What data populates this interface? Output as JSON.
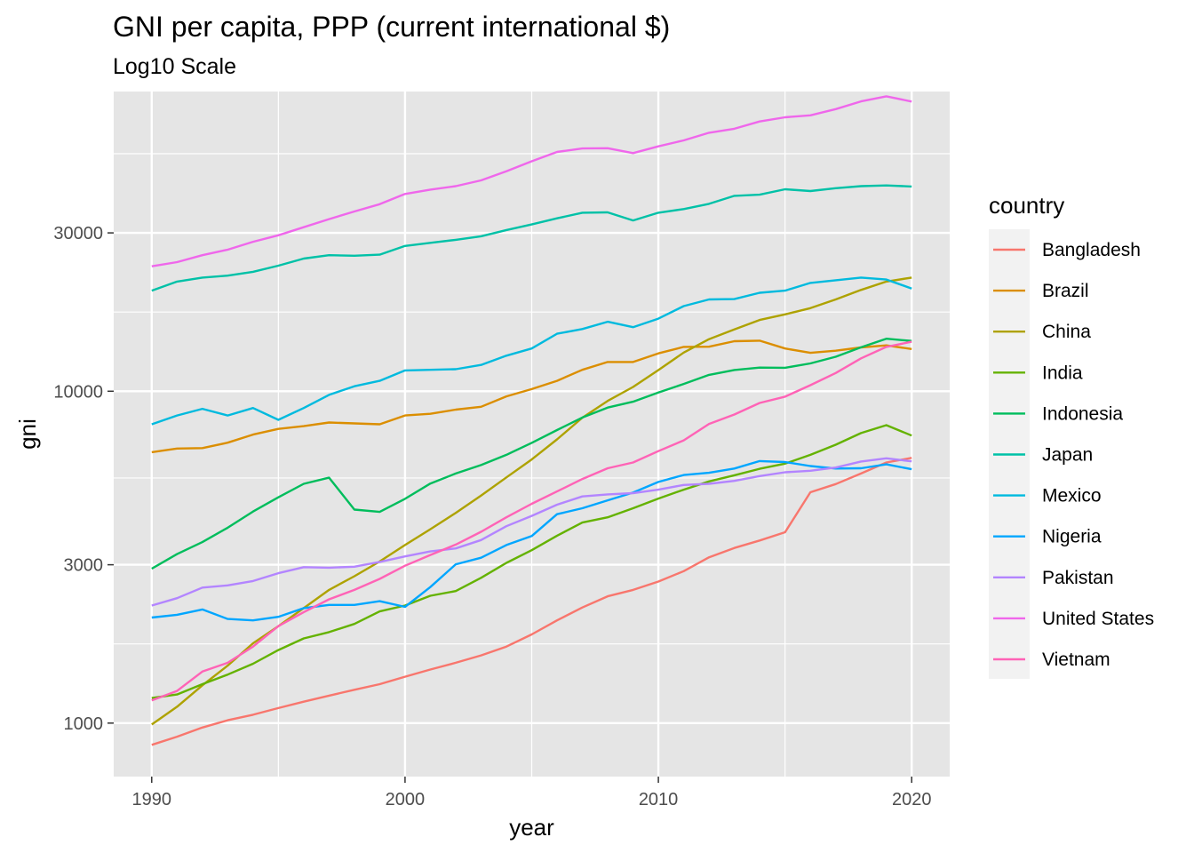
{
  "chart_data": {
    "type": "line",
    "title": "GNI per capita, PPP (current international $)",
    "subtitle": "Log10 Scale",
    "xlabel": "year",
    "ylabel": "gni",
    "y_scale": "log10",
    "xlim": [
      1988.5,
      2021.5
    ],
    "ylim": [
      690,
      80000
    ],
    "x_ticks": [
      1990,
      2000,
      2010,
      2020
    ],
    "y_ticks": [
      1000,
      3000,
      10000,
      30000
    ],
    "grid": true,
    "panel_background": "#e5e5e5",
    "legend_title": "country",
    "legend_position": "right",
    "x": [
      1990,
      1991,
      1992,
      1993,
      1994,
      1995,
      1996,
      1997,
      1998,
      1999,
      2000,
      2001,
      2002,
      2003,
      2004,
      2005,
      2006,
      2007,
      2008,
      2009,
      2010,
      2011,
      2012,
      2013,
      2014,
      2015,
      2016,
      2017,
      2018,
      2019,
      2020
    ],
    "series": [
      {
        "name": "Bangladesh",
        "color": "#F8766D",
        "values": [
          860,
          910,
          970,
          1020,
          1060,
          1110,
          1160,
          1210,
          1260,
          1310,
          1380,
          1450,
          1520,
          1600,
          1700,
          1850,
          2040,
          2230,
          2410,
          2520,
          2670,
          2870,
          3160,
          3370,
          3550,
          3760,
          4960,
          5250,
          5650,
          6100,
          6300
        ]
      },
      {
        "name": "Brazil",
        "color": "#DB8E00",
        "values": [
          6550,
          6720,
          6740,
          7000,
          7400,
          7700,
          7850,
          8050,
          8000,
          7950,
          8450,
          8550,
          8800,
          8980,
          9650,
          10150,
          10750,
          11600,
          12250,
          12250,
          13000,
          13600,
          13620,
          14150,
          14200,
          13450,
          13050,
          13250,
          13550,
          13750,
          13400
        ]
      },
      {
        "name": "China",
        "color": "#AEA200",
        "values": [
          990,
          1120,
          1300,
          1490,
          1740,
          1960,
          2220,
          2520,
          2770,
          3070,
          3440,
          3840,
          4300,
          4850,
          5500,
          6230,
          7160,
          8320,
          9350,
          10300,
          11580,
          13080,
          14350,
          15350,
          16400,
          17050,
          17800,
          18900,
          20200,
          21400,
          22000
        ]
      },
      {
        "name": "India",
        "color": "#64B200",
        "values": [
          1190,
          1220,
          1310,
          1400,
          1510,
          1660,
          1800,
          1880,
          1990,
          2170,
          2260,
          2420,
          2500,
          2740,
          3040,
          3320,
          3670,
          4020,
          4170,
          4440,
          4750,
          5050,
          5350,
          5580,
          5840,
          6050,
          6430,
          6900,
          7480,
          7900,
          7350
        ]
      },
      {
        "name": "Indonesia",
        "color": "#00BD5C",
        "values": [
          2920,
          3230,
          3510,
          3880,
          4340,
          4790,
          5260,
          5490,
          4400,
          4330,
          4740,
          5270,
          5650,
          5990,
          6430,
          6990,
          7640,
          8330,
          8930,
          9300,
          9910,
          10520,
          11200,
          11590,
          11780,
          11770,
          12130,
          12700,
          13560,
          14400,
          14180
        ]
      },
      {
        "name": "Japan",
        "color": "#00C1A7",
        "values": [
          20100,
          21400,
          22000,
          22300,
          22900,
          23900,
          25100,
          25700,
          25600,
          25800,
          27400,
          28000,
          28600,
          29300,
          30600,
          31800,
          33200,
          34500,
          34600,
          32700,
          34500,
          35400,
          36700,
          38800,
          39100,
          40600,
          40100,
          40900,
          41500,
          41700,
          41400
        ]
      },
      {
        "name": "Mexico",
        "color": "#00BADE",
        "values": [
          7950,
          8450,
          8850,
          8450,
          8900,
          8200,
          8900,
          9750,
          10350,
          10750,
          11550,
          11600,
          11650,
          12000,
          12800,
          13450,
          14900,
          15400,
          16200,
          15600,
          16550,
          18050,
          18900,
          18950,
          19800,
          20100,
          21200,
          21600,
          22000,
          21700,
          20400
        ]
      },
      {
        "name": "Nigeria",
        "color": "#00A6FF",
        "values": [
          2080,
          2120,
          2200,
          2060,
          2040,
          2090,
          2220,
          2270,
          2270,
          2330,
          2240,
          2570,
          3010,
          3150,
          3440,
          3660,
          4260,
          4440,
          4690,
          4950,
          5330,
          5590,
          5680,
          5850,
          6160,
          6120,
          5950,
          5850,
          5860,
          6020,
          5820
        ]
      },
      {
        "name": "Pakistan",
        "color": "#B385FF",
        "values": [
          2260,
          2380,
          2560,
          2600,
          2680,
          2830,
          2950,
          2940,
          2960,
          3060,
          3180,
          3290,
          3360,
          3560,
          3920,
          4210,
          4550,
          4820,
          4890,
          4930,
          5050,
          5220,
          5260,
          5370,
          5550,
          5700,
          5760,
          5890,
          6140,
          6280,
          6150
        ]
      },
      {
        "name": "United States",
        "color": "#EF67EB",
        "values": [
          23800,
          24500,
          25700,
          26700,
          28200,
          29500,
          31200,
          33000,
          34800,
          36600,
          39300,
          40500,
          41500,
          43200,
          46000,
          49300,
          52600,
          53900,
          54000,
          52200,
          54700,
          57000,
          60100,
          61800,
          65000,
          66900,
          67800,
          70800,
          74700,
          77400,
          74600
        ]
      },
      {
        "name": "Vietnam",
        "color": "#FF63B6",
        "values": [
          1170,
          1250,
          1430,
          1520,
          1700,
          1960,
          2160,
          2360,
          2520,
          2720,
          2980,
          3210,
          3450,
          3770,
          4170,
          4580,
          4990,
          5440,
          5860,
          6100,
          6600,
          7110,
          7970,
          8510,
          9220,
          9630,
          10430,
          11350,
          12560,
          13600,
          14100
        ]
      }
    ]
  }
}
